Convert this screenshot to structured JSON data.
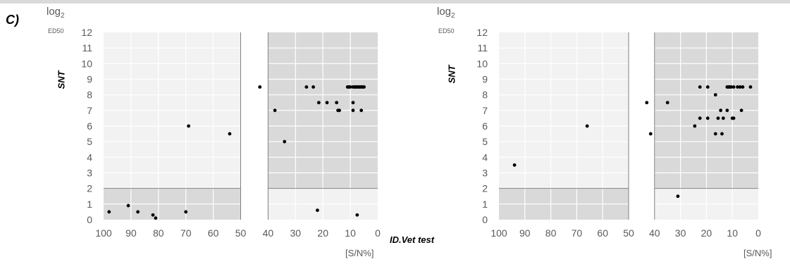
{
  "panel_label": "C)",
  "colors": {
    "light_region": "#f2f2f2",
    "dark_region": "#d9d9d9",
    "white_band": "#ffffff",
    "grid": "#ffffff",
    "border": "#7f7f7f",
    "point": "#000000",
    "tick_text": "#595959"
  },
  "x_axis_title_between": "ID.Vet test",
  "chart_data": [
    {
      "type": "scatter",
      "title": "",
      "ylabel": "SNT",
      "ylabel_unit_main": "log",
      "ylabel_unit_sub": "2",
      "ylabel_unit_line2": "ED50",
      "xlabel": "[S/N%]",
      "xlim": [
        100,
        0
      ],
      "x_reversed": true,
      "ylim": [
        0,
        12
      ],
      "x_ticks": [
        100,
        90,
        80,
        70,
        60,
        50,
        40,
        30,
        20,
        10,
        0
      ],
      "y_ticks": [
        0,
        1,
        2,
        3,
        4,
        5,
        6,
        7,
        8,
        9,
        10,
        11,
        12
      ],
      "grid": true,
      "regions": [
        {
          "x": [
            100,
            50
          ],
          "y": [
            2,
            12
          ],
          "shade": "light"
        },
        {
          "x": [
            100,
            50
          ],
          "y": [
            0,
            2
          ],
          "shade": "dark"
        },
        {
          "x": [
            50,
            40
          ],
          "y": [
            0,
            12
          ],
          "shade": "white"
        },
        {
          "x": [
            40,
            0
          ],
          "y": [
            2,
            12
          ],
          "shade": "dark"
        },
        {
          "x": [
            40,
            0
          ],
          "y": [
            0,
            2
          ],
          "shade": "light"
        }
      ],
      "points": [
        [
          98,
          0.5
        ],
        [
          91,
          0.9
        ],
        [
          87.5,
          0.5
        ],
        [
          82,
          0.3
        ],
        [
          81,
          0.1
        ],
        [
          70,
          0.5
        ],
        [
          69,
          6
        ],
        [
          54,
          5.5
        ],
        [
          43,
          8.5
        ],
        [
          37.5,
          7
        ],
        [
          34,
          5
        ],
        [
          26,
          8.5
        ],
        [
          23.5,
          8.5
        ],
        [
          21.5,
          7.5
        ],
        [
          18.5,
          7.5
        ],
        [
          15,
          7.5
        ],
        [
          14.5,
          7
        ],
        [
          14,
          7
        ],
        [
          11,
          8.5
        ],
        [
          10.5,
          8.5
        ],
        [
          10,
          8.5
        ],
        [
          9,
          8.5
        ],
        [
          8.5,
          8.5
        ],
        [
          8,
          8.5
        ],
        [
          7.5,
          8.5
        ],
        [
          7,
          8.5
        ],
        [
          6.5,
          8.5
        ],
        [
          6,
          8.5
        ],
        [
          5.5,
          8.5
        ],
        [
          5,
          8.5
        ],
        [
          9,
          7.5
        ],
        [
          9,
          7
        ],
        [
          6,
          7
        ],
        [
          22,
          0.6
        ],
        [
          7.5,
          0.3
        ]
      ]
    },
    {
      "type": "scatter",
      "title": "",
      "ylabel": "SNT",
      "ylabel_unit_main": "log",
      "ylabel_unit_sub": "2",
      "ylabel_unit_line2": "ED50",
      "xlabel": "[S/N%]",
      "xlim": [
        100,
        0
      ],
      "x_reversed": true,
      "ylim": [
        0,
        12
      ],
      "x_ticks": [
        100,
        90,
        80,
        70,
        60,
        50,
        40,
        30,
        20,
        10,
        0
      ],
      "y_ticks": [
        0,
        1,
        2,
        3,
        4,
        5,
        6,
        7,
        8,
        9,
        10,
        11,
        12
      ],
      "grid": true,
      "regions": [
        {
          "x": [
            100,
            50
          ],
          "y": [
            2,
            12
          ],
          "shade": "light"
        },
        {
          "x": [
            100,
            50
          ],
          "y": [
            0,
            2
          ],
          "shade": "dark"
        },
        {
          "x": [
            50,
            40
          ],
          "y": [
            0,
            12
          ],
          "shade": "white"
        },
        {
          "x": [
            40,
            0
          ],
          "y": [
            2,
            12
          ],
          "shade": "dark"
        },
        {
          "x": [
            40,
            0
          ],
          "y": [
            0,
            2
          ],
          "shade": "light"
        }
      ],
      "points": [
        [
          94,
          3.5
        ],
        [
          66,
          6
        ],
        [
          43,
          7.5
        ],
        [
          41.5,
          5.5
        ],
        [
          35,
          7.5
        ],
        [
          31,
          1.5
        ],
        [
          24.5,
          6
        ],
        [
          22.5,
          8.5
        ],
        [
          22.5,
          6.5
        ],
        [
          19.5,
          8.5
        ],
        [
          19.5,
          6.5
        ],
        [
          16.5,
          8
        ],
        [
          16.5,
          5.5
        ],
        [
          15.5,
          6.5
        ],
        [
          14.5,
          7
        ],
        [
          14,
          5.5
        ],
        [
          13.5,
          6.5
        ],
        [
          12,
          8.5
        ],
        [
          12,
          7
        ],
        [
          11.5,
          8.5
        ],
        [
          11,
          8.5
        ],
        [
          10.5,
          8.5
        ],
        [
          10,
          6.5
        ],
        [
          9.5,
          8.5
        ],
        [
          9.5,
          6.5
        ],
        [
          8,
          8.5
        ],
        [
          7,
          8.5
        ],
        [
          6.5,
          7
        ],
        [
          6,
          8.5
        ],
        [
          3,
          8.5
        ]
      ]
    }
  ]
}
